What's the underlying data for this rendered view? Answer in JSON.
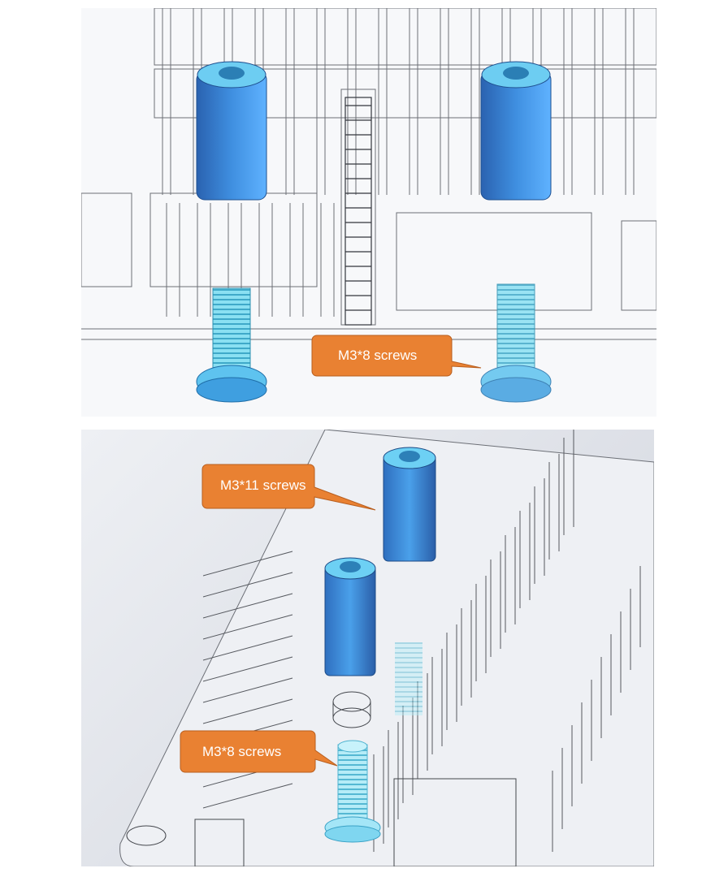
{
  "top_view": {
    "callout_screws": "M3*8 screws"
  },
  "bottom_view": {
    "callout_standoffs": "M3*11 screws",
    "callout_screws": "M3*8 screws"
  },
  "colors": {
    "standoff_blue": "#3d8fe0",
    "standoff_dark": "#2f6db8",
    "screw_cyan": "#7fd6f0",
    "callout_orange": "#e98132",
    "line_gray": "#6c6f76"
  }
}
